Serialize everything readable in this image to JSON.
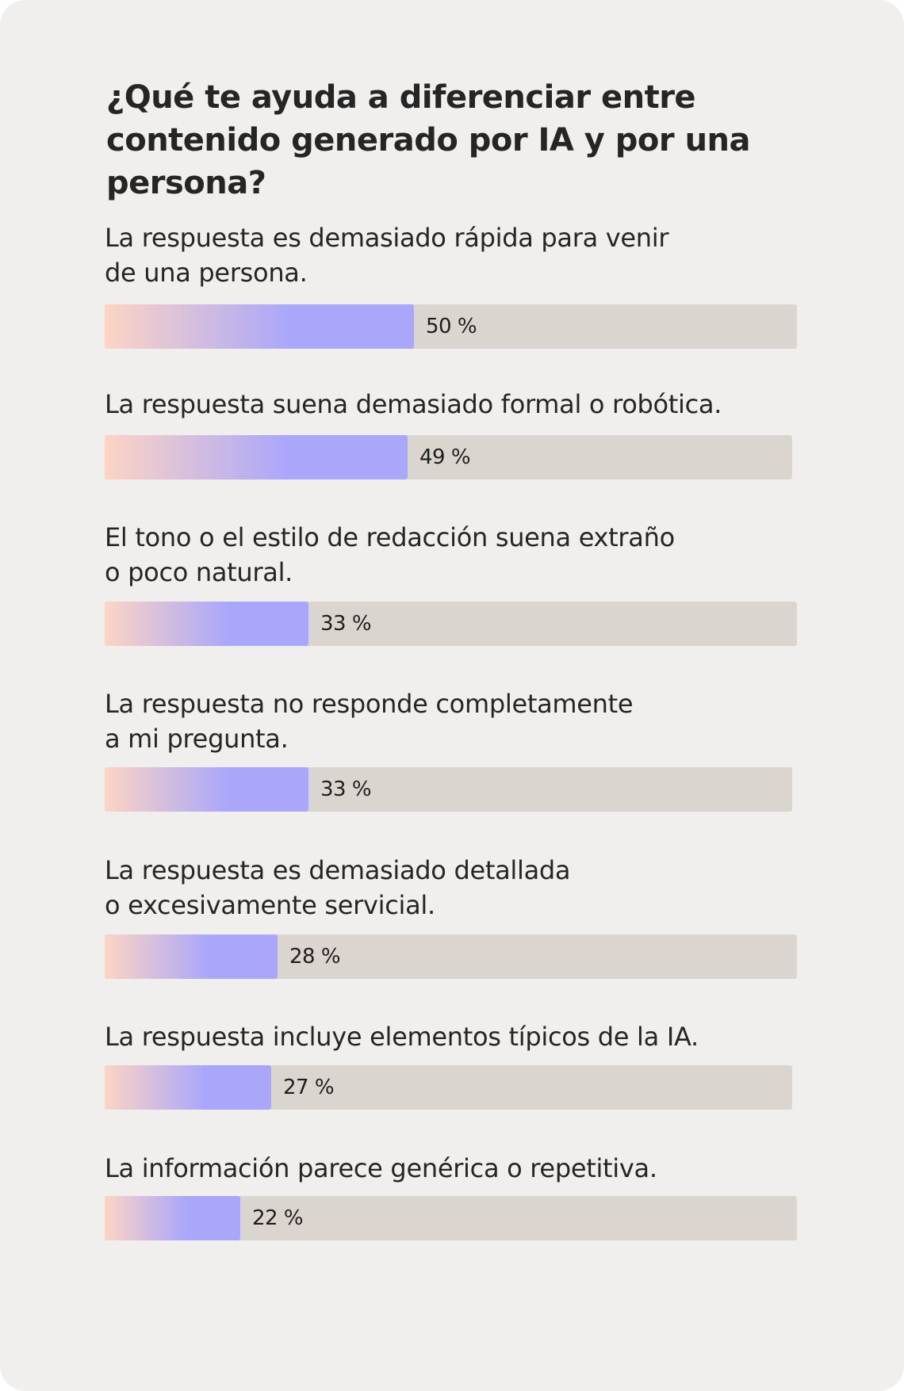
{
  "chart_data": {
    "type": "bar",
    "orientation": "horizontal",
    "title": "¿Qué te ayuda a diferenciar entre contenido generado por IA y por una persona?",
    "unit": "%",
    "xlim": [
      0,
      100
    ],
    "categories": [
      "La respuesta es demasiado rápida para venir\nde una persona.",
      "La respuesta suena demasiado formal o robótica.",
      "El tono o el estilo de redacción suena extraño\no poco natural.",
      "La respuesta no responde completamente\na mi pregunta.",
      "La respuesta es demasiado detallada\no excesivamente servicial.",
      "La respuesta incluye elementos típicos de la IA.",
      "La información parece genérica o repetitiva."
    ],
    "values": [
      50,
      49,
      33,
      33,
      28,
      27,
      22
    ],
    "value_labels": [
      "50 %",
      "49 %",
      "33 %",
      "33 %",
      "28 %",
      "27 %",
      "22 %"
    ],
    "grid": false,
    "legend": "none"
  },
  "colors": {
    "card_background": "#f1efed",
    "track": "#dbd5d0",
    "fill_start": "#fdd4c4",
    "fill_end": "#aaa7fb",
    "text": "#252525"
  }
}
